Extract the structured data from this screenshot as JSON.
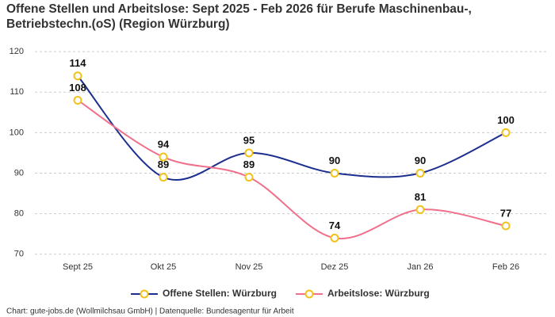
{
  "chart_data": {
    "type": "line",
    "title": [
      "Offene Stellen und Arbeitslose: Sept 2025 - Feb 2026 für Berufe Maschinenbau-,",
      "Betriebstechn.(oS) (Region Würzburg)"
    ],
    "categories": [
      "Sept 25",
      "Okt 25",
      "Nov 25",
      "Dez 25",
      "Jan 26",
      "Feb 26"
    ],
    "series": [
      {
        "name": "Offene Stellen: Würzburg",
        "color": "#1c2f8f",
        "values": [
          114,
          89,
          95,
          90,
          90,
          100
        ]
      },
      {
        "name": "Arbeitslose: Würzburg",
        "color": "#f06f8a",
        "values": [
          108,
          94,
          89,
          74,
          81,
          77
        ]
      }
    ],
    "marker_color": "#f2c21b",
    "ylim": [
      68,
      121
    ],
    "yticks": [
      70,
      80,
      90,
      100,
      110,
      120
    ],
    "grid": true,
    "legend": "bottom",
    "source": "Chart: gute-jobs.de (Wollmilchsau GmbH) | Datenquelle: Bundesagentur für Arbeit"
  }
}
